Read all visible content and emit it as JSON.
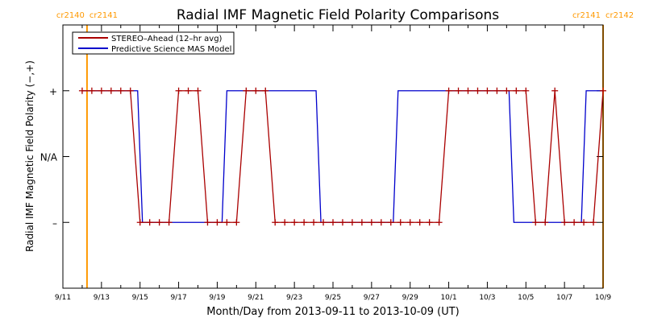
{
  "chart_data": {
    "type": "line",
    "title": "Radial IMF Magnetic Field Polarity Comparisons",
    "xlabel": "Month/Day from 2013-09-11 to 2013-10-09 (UT)",
    "ylabel": "Radial IMF Magnetic Field Polarity (−,+)",
    "xlim": [
      "2013-09-11",
      "2013-10-09"
    ],
    "ylim": [
      -2,
      2
    ],
    "x_ticks": [
      "2013-09-11",
      "2013-09-13",
      "2013-09-15",
      "2013-09-17",
      "2013-09-19",
      "2013-09-21",
      "2013-09-23",
      "2013-09-25",
      "2013-09-27",
      "2013-09-29",
      "2013-10-01",
      "2013-10-03",
      "2013-10-05",
      "2013-10-07",
      "2013-10-09"
    ],
    "x_tick_labels": [
      "9/11",
      "9/13",
      "9/15",
      "9/17",
      "9/19",
      "9/21",
      "9/23",
      "9/25",
      "9/27",
      "9/29",
      "10/1",
      "10/3",
      "10/5",
      "10/7",
      "10/9"
    ],
    "y_ticks": [
      1,
      0,
      -1
    ],
    "y_tick_labels": [
      "+",
      "N/A",
      "–"
    ],
    "grid": false,
    "legend_position": "top-left",
    "carrington_markers": [
      {
        "x": "2013-09-12T06:00",
        "label_left": "cr2140",
        "label_right": "cr2141",
        "color": "#ff9900"
      },
      {
        "x": "2013-10-09T00:00",
        "label_left": "cr2141",
        "label_right": "cr2142",
        "color": "#ff9900"
      }
    ],
    "series": [
      {
        "name": "STEREO–Ahead (12–hr avg)",
        "color": "#aa0000",
        "markers": true,
        "x": [
          "2013-09-12T00:00",
          "2013-09-12T12:00",
          "2013-09-13T00:00",
          "2013-09-13T12:00",
          "2013-09-14T00:00",
          "2013-09-14T12:00",
          "2013-09-15T00:00",
          "2013-09-15T12:00",
          "2013-09-16T00:00",
          "2013-09-16T12:00",
          "2013-09-17T00:00",
          "2013-09-17T12:00",
          "2013-09-18T00:00",
          "2013-09-18T12:00",
          "2013-09-19T00:00",
          "2013-09-19T12:00",
          "2013-09-20T00:00",
          "2013-09-20T12:00",
          "2013-09-21T00:00",
          "2013-09-21T12:00",
          "2013-09-22T00:00",
          "2013-09-22T12:00",
          "2013-09-23T00:00",
          "2013-09-23T12:00",
          "2013-09-24T00:00",
          "2013-09-24T12:00",
          "2013-09-25T00:00",
          "2013-09-25T12:00",
          "2013-09-26T00:00",
          "2013-09-26T12:00",
          "2013-09-27T00:00",
          "2013-09-27T12:00",
          "2013-09-28T00:00",
          "2013-09-28T12:00",
          "2013-09-29T00:00",
          "2013-09-29T12:00",
          "2013-09-30T00:00",
          "2013-09-30T12:00",
          "2013-10-01T00:00",
          "2013-10-01T12:00",
          "2013-10-02T00:00",
          "2013-10-02T12:00",
          "2013-10-03T00:00",
          "2013-10-03T12:00",
          "2013-10-04T00:00",
          "2013-10-04T12:00",
          "2013-10-05T00:00",
          "2013-10-05T12:00",
          "2013-10-06T00:00",
          "2013-10-06T12:00",
          "2013-10-07T00:00",
          "2013-10-07T12:00",
          "2013-10-08T00:00",
          "2013-10-08T12:00",
          "2013-10-09T00:00"
        ],
        "y": [
          1,
          1,
          1,
          1,
          1,
          1,
          -1,
          -1,
          -1,
          -1,
          1,
          1,
          1,
          -1,
          -1,
          -1,
          -1,
          1,
          1,
          1,
          -1,
          -1,
          -1,
          -1,
          -1,
          -1,
          -1,
          -1,
          -1,
          -1,
          -1,
          -1,
          -1,
          -1,
          -1,
          -1,
          -1,
          -1,
          1,
          1,
          1,
          1,
          1,
          1,
          1,
          1,
          1,
          -1,
          -1,
          1,
          -1,
          -1,
          -1,
          -1,
          1
        ]
      },
      {
        "name": "Predictive Science MAS Model",
        "color": "#0000cc",
        "markers": false,
        "x": [
          "2013-09-12T00:00",
          "2013-09-14T21:00",
          "2013-09-15T03:00",
          "2013-09-19T06:00",
          "2013-09-19T12:00",
          "2013-09-24T03:00",
          "2013-09-24T09:00",
          "2013-09-28T03:00",
          "2013-09-28T09:00",
          "2013-10-04T03:00",
          "2013-10-04T09:00",
          "2013-10-07T21:00",
          "2013-10-08T03:00",
          "2013-10-09T00:00"
        ],
        "y": [
          1,
          1,
          -1,
          -1,
          1,
          1,
          -1,
          -1,
          1,
          1,
          -1,
          -1,
          1,
          1
        ]
      }
    ]
  }
}
